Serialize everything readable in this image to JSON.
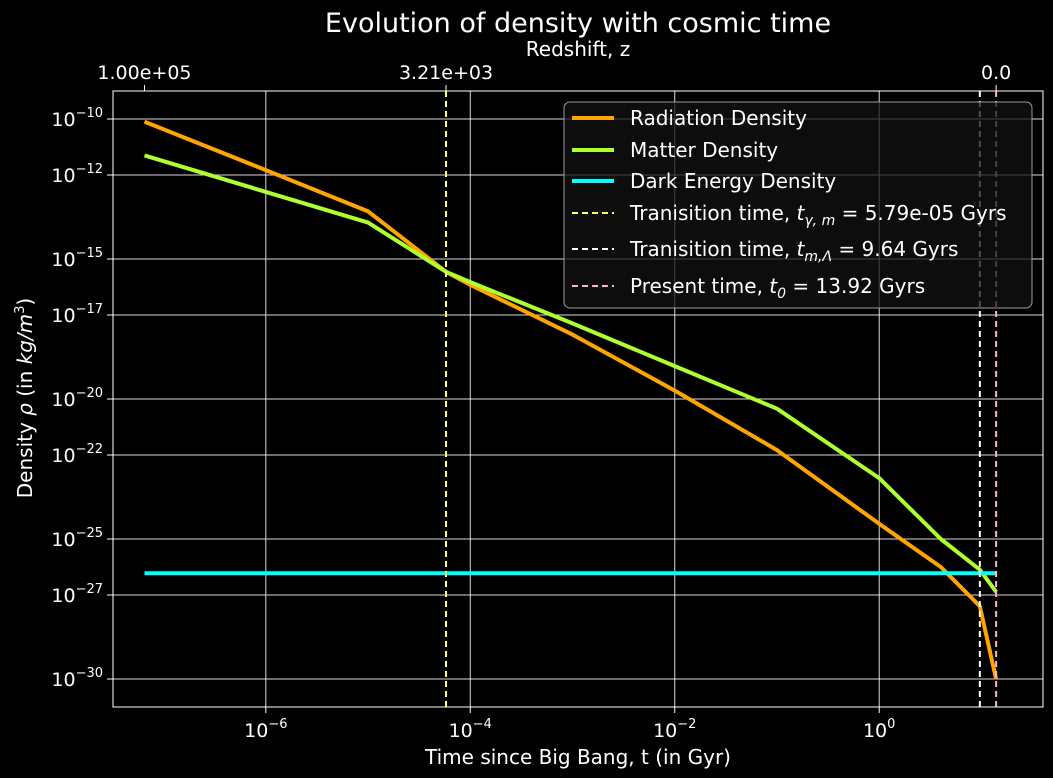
{
  "chart_data": {
    "type": "line",
    "title": "Evolution of density with cosmic time",
    "xlabel": "Time since Big Bang, t (in Gyr)",
    "ylabel": "Density ρ (in kg/m³)",
    "x_scale": "log",
    "y_scale": "log",
    "xlim": [
      3.2e-08,
      40
    ],
    "ylim": [
      1e-31,
      1e-09
    ],
    "grid": true,
    "background": "#000000",
    "legend_position": "top-right",
    "x_ticks": [
      {
        "value": 1e-06,
        "base": "10",
        "exp": "−6"
      },
      {
        "value": 0.0001,
        "base": "10",
        "exp": "−4"
      },
      {
        "value": 0.01,
        "base": "10",
        "exp": "−2"
      },
      {
        "value": 1,
        "base": "10",
        "exp": "0"
      }
    ],
    "y_ticks": [
      {
        "value": 1e-10,
        "base": "10",
        "exp": "−10"
      },
      {
        "value": 1e-12,
        "base": "10",
        "exp": "−12"
      },
      {
        "value": 1e-15,
        "base": "10",
        "exp": "−15"
      },
      {
        "value": 1e-17,
        "base": "10",
        "exp": "−17"
      },
      {
        "value": 1e-20,
        "base": "10",
        "exp": "−20"
      },
      {
        "value": 1e-22,
        "base": "10",
        "exp": "−22"
      },
      {
        "value": 1e-25,
        "base": "10",
        "exp": "−25"
      },
      {
        "value": 1e-27,
        "base": "10",
        "exp": "−27"
      },
      {
        "value": 1e-30,
        "base": "10",
        "exp": "−30"
      }
    ],
    "top_axis": {
      "label": "Redshift, z",
      "ticks": [
        {
          "t": 6.5e-08,
          "label": "1.00e+05"
        },
        {
          "t": 5.79e-05,
          "label": "3.21e+03"
        },
        {
          "t": 13.92,
          "label": "0.0"
        }
      ]
    },
    "series": [
      {
        "name": "Radiation Density",
        "color": "#FFA500",
        "points": [
          [
            6.5e-08,
            8e-11
          ],
          [
            1e-06,
            1.5e-12
          ],
          [
            1e-05,
            5e-14
          ],
          [
            5.79e-05,
            3.5e-16
          ],
          [
            0.0001,
            1.2e-16
          ],
          [
            0.001,
            2e-18
          ],
          [
            0.01,
            2e-20
          ],
          [
            0.1,
            1.5e-22
          ],
          [
            1,
            3.5e-25
          ],
          [
            4,
            1e-26
          ],
          [
            9.64,
            4e-28
          ],
          [
            13.92,
            1e-30
          ]
        ]
      },
      {
        "name": "Matter Density",
        "color": "#ADFF2F",
        "points": [
          [
            6.5e-08,
            5e-12
          ],
          [
            1e-06,
            2.5e-13
          ],
          [
            1e-05,
            2e-14
          ],
          [
            5.79e-05,
            3.5e-16
          ],
          [
            0.0001,
            1.5e-16
          ],
          [
            0.001,
            5e-18
          ],
          [
            0.01,
            1.5e-19
          ],
          [
            0.1,
            4.5e-21
          ],
          [
            1,
            1.5e-23
          ],
          [
            4,
            1e-25
          ],
          [
            9.64,
            8e-27
          ],
          [
            13.92,
            1.3e-27
          ]
        ]
      },
      {
        "name": "Dark Energy Density",
        "color": "#00FFFF",
        "points": [
          [
            6.5e-08,
            6e-27
          ],
          [
            13.92,
            6e-27
          ]
        ]
      }
    ],
    "vlines": [
      {
        "x": 5.79e-05,
        "color": "#FFFF66",
        "label_pre": "Tranisition time, ",
        "sym": "t",
        "sub": "γ, m",
        "label_post": " = 5.79e-05 Gyrs"
      },
      {
        "x": 9.64,
        "color": "#FFFFFF",
        "label_pre": "Tranisition time, ",
        "sym": "t",
        "sub": "m,Λ",
        "label_post": " = 9.64 Gyrs"
      },
      {
        "x": 13.92,
        "color": "#FFB6C1",
        "label_pre": "Present time, ",
        "sym": "t",
        "sub": "0",
        "label_post": " = 13.92 Gyrs"
      }
    ]
  }
}
